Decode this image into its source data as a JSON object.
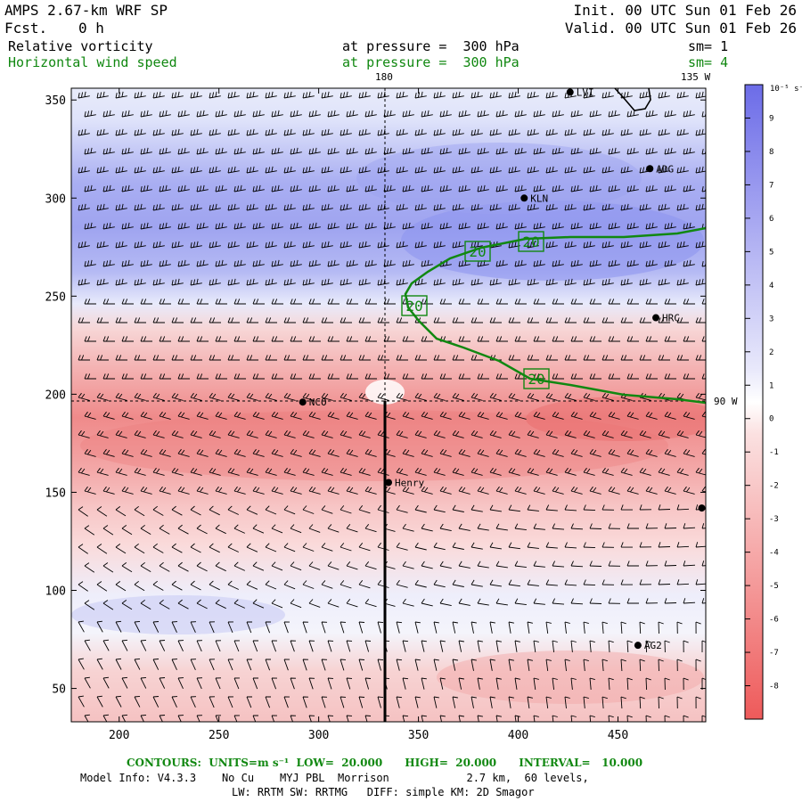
{
  "header": {
    "model": "AMPS 2.67-km WRF SP",
    "fcst_label": "Fcst.",
    "fcst_value": "0 h",
    "init": "Init. 00 UTC Sun 01 Feb 26",
    "valid": "Valid. 00 UTC Sun 01 Feb 26"
  },
  "fields": [
    {
      "name": "Relative vorticity",
      "level": "at pressure =  300 hPa",
      "smooth": "sm= 1",
      "color": "#000000"
    },
    {
      "name": "Horizontal wind speed",
      "level": "at pressure =  300 hPa",
      "smooth": "sm= 4",
      "color": "#118811"
    }
  ],
  "map": {
    "x_ticks": [
      "200",
      "250",
      "300",
      "350",
      "400",
      "450"
    ],
    "y_ticks": [
      "350",
      "300",
      "250",
      "200",
      "150",
      "100",
      "50"
    ],
    "x_range": [
      176,
      494
    ],
    "y_range": [
      33,
      356
    ],
    "meridian_labels": {
      "top_180": "180",
      "top_135w": "135 W",
      "right_90w": "90 W"
    },
    "stations": [
      {
        "name": "KLN",
        "x": 403,
        "y": 300
      },
      {
        "name": "ADG",
        "x": 466,
        "y": 315
      },
      {
        "name": "HRC",
        "x": 469,
        "y": 239
      },
      {
        "name": "NCO",
        "x": 292,
        "y": 196
      },
      {
        "name": "Henry",
        "x": 335,
        "y": 155
      },
      {
        "name": "AG2",
        "x": 460,
        "y": 72
      },
      {
        "name": "LVI",
        "x": 426,
        "y": 354
      },
      {
        "name": "",
        "x": 492,
        "y": 142
      }
    ],
    "contour": {
      "value": "20",
      "labels": [
        "20",
        "20",
        "20",
        "20"
      ]
    }
  },
  "colorbar": {
    "unit": "10⁻⁵ s⁻¹",
    "ticks": [
      "9",
      "8",
      "7",
      "6",
      "5",
      "4",
      "3",
      "2",
      "1",
      "0",
      "-1",
      "-2",
      "-3",
      "-4",
      "-5",
      "-6",
      "-7",
      "-8"
    ],
    "positive_color": "#6c6ce8",
    "negative_color": "#ee5a5a"
  },
  "footer": {
    "contours": "CONTOURS:  UNITS=m s⁻¹  LOW=  20.000      HIGH=  20.000      INTERVAL=   10.000",
    "model_info": "Model Info: V4.3.3    No Cu    MYJ PBL  Morrison            2.7 km,  60 levels,",
    "physics": "LW: RRTM SW: RRTMG   DIFF: simple KM: 2D Smagor"
  },
  "colors": {
    "contour": "#118811",
    "frame": "#000000"
  }
}
